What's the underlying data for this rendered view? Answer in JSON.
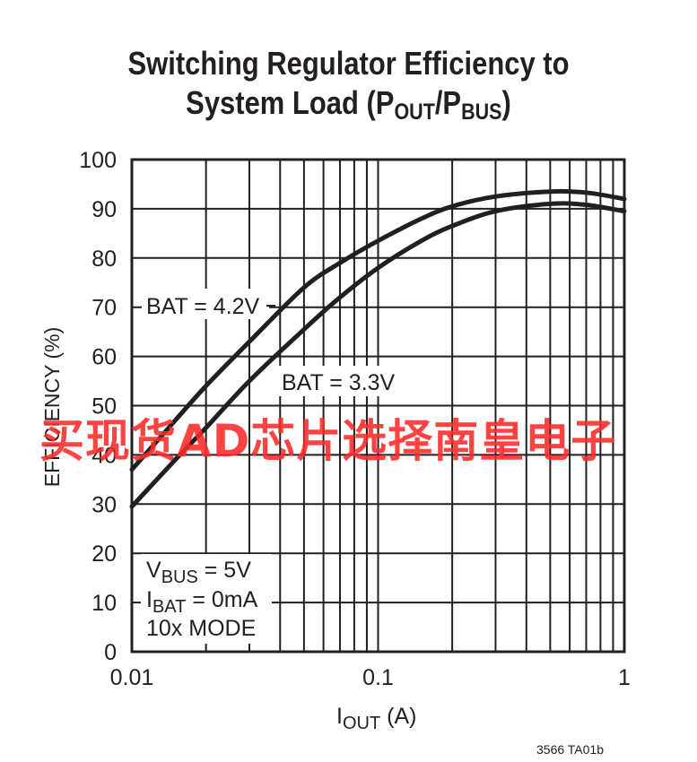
{
  "title_line1": "Switching Regulator Efficiency to",
  "title_line2_prefix": "System Load (P",
  "title_sub_out": "OUT",
  "title_slash": "/P",
  "title_sub_bus": "BUS",
  "title_close": ")",
  "footer": "3566 TA01b",
  "watermark": "买现货AD芯片选择南皇电子",
  "chart_data": {
    "type": "line",
    "xscale": "log",
    "xlim": [
      0.01,
      1
    ],
    "ylim": [
      0,
      100
    ],
    "xticks": [
      "0.01",
      "0.1",
      "1"
    ],
    "yticks": [
      "0",
      "10",
      "20",
      "30",
      "40",
      "50",
      "60",
      "70",
      "80",
      "90",
      "100"
    ],
    "xlabel": "I",
    "xlabel_sub": "OUT",
    "xlabel_unit": " (A)",
    "ylabel": "EFFICIENCY (%)",
    "grid": true,
    "series": [
      {
        "name": "BAT = 4.2V",
        "x": [
          0.01,
          0.015,
          0.02,
          0.03,
          0.05,
          0.07,
          0.1,
          0.15,
          0.2,
          0.3,
          0.5,
          0.7,
          1.0
        ],
        "y": [
          37,
          47,
          54,
          63,
          74,
          79,
          83.5,
          88,
          90.5,
          92.5,
          93.5,
          93.3,
          92
        ]
      },
      {
        "name": "BAT = 3.3V",
        "x": [
          0.01,
          0.015,
          0.02,
          0.03,
          0.05,
          0.07,
          0.1,
          0.15,
          0.2,
          0.3,
          0.5,
          0.7,
          1.0
        ],
        "y": [
          29.5,
          39,
          45.5,
          55,
          65.5,
          72,
          78,
          83.5,
          86.5,
          89.5,
          91,
          90.8,
          89.5
        ]
      }
    ],
    "annotation": {
      "vbus_prefix": "V",
      "vbus_sub": "BUS",
      "vbus_value": " = 5V",
      "ibat_prefix": "I",
      "ibat_sub": "BAT",
      "ibat_value": " = 0mA",
      "mode": "10x MODE"
    }
  }
}
